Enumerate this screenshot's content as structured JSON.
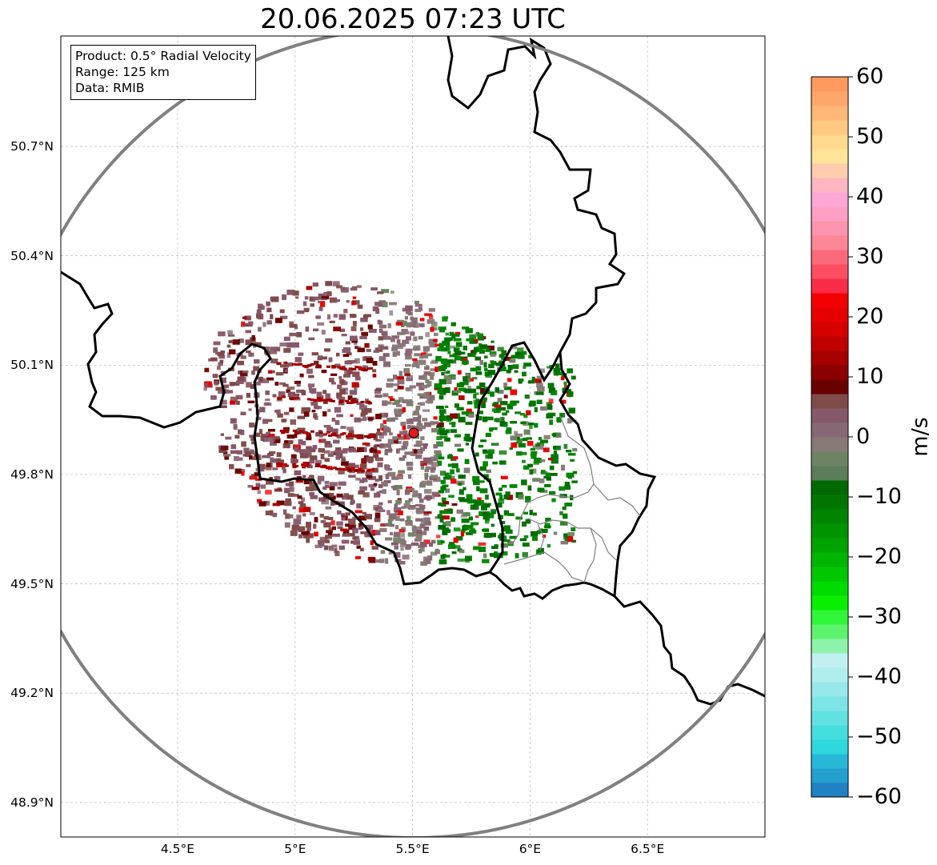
{
  "title": "20.06.2025 07:23 UTC",
  "info_box": {
    "product": "Product: 0.5° Radial Velocity",
    "range": "Range: 125 km",
    "data": "Data: RMIB"
  },
  "axes": {
    "lat_ticks": [
      "50.7°N",
      "50.4°N",
      "50.1°N",
      "49.8°N",
      "49.5°N",
      "49.2°N",
      "48.9°N"
    ],
    "lon_ticks": [
      "4.5°E",
      "5°E",
      "5.5°E",
      "6°E",
      "6.5°E"
    ],
    "lat_values": [
      50.7,
      50.4,
      50.1,
      49.8,
      49.5,
      49.2,
      48.9
    ],
    "lon_values": [
      4.5,
      5.0,
      5.5,
      6.0,
      6.5
    ]
  },
  "radar": {
    "center_lat": 49.914,
    "center_lon": 5.505,
    "range_km": 125
  },
  "colorbar": {
    "label": "m/s",
    "ticks": [
      "60",
      "50",
      "40",
      "30",
      "20",
      "10",
      "0",
      "−10",
      "−20",
      "−30",
      "−40",
      "−50",
      "−60"
    ],
    "tick_values": [
      60,
      50,
      40,
      30,
      20,
      10,
      0,
      -10,
      -20,
      -30,
      -40,
      -50,
      -60
    ],
    "range": [
      -60,
      60
    ],
    "colors": [
      "#2081c3",
      "#24a0cf",
      "#27b8d8",
      "#2fd8dd",
      "#45dede",
      "#61e1e2",
      "#7ee5e6",
      "#97e8ea",
      "#b0eded",
      "#c2f0f0",
      "#8ef3aa",
      "#5cf46c",
      "#30f63a",
      "#08f000",
      "#00db00",
      "#00c800",
      "#00b400",
      "#00a400",
      "#009400",
      "#008500",
      "#007600",
      "#006900",
      "#5a7d5a",
      "#6e8364",
      "#877a76",
      "#866874",
      "#85586a",
      "#7e4a4a",
      "#6b0000",
      "#8b0000",
      "#a60000",
      "#c00000",
      "#d70000",
      "#e60000",
      "#f20000",
      "#f92b46",
      "#fb4e62",
      "#fc6a7a",
      "#fd8796",
      "#fe94ad",
      "#fe9fc6",
      "#ffa8d8",
      "#ffb6c0",
      "#ffccb0",
      "#ffe49a",
      "#ffd98d",
      "#ffc982",
      "#ffb878",
      "#ffa76b",
      "#ff9a5e"
    ]
  },
  "style": {
    "range_ring_color": "#808080",
    "border_color": "#000000",
    "admin_border_color": "#808080",
    "grid_color": "#bbbbbb",
    "radar_site_color": "#e41a1c"
  }
}
